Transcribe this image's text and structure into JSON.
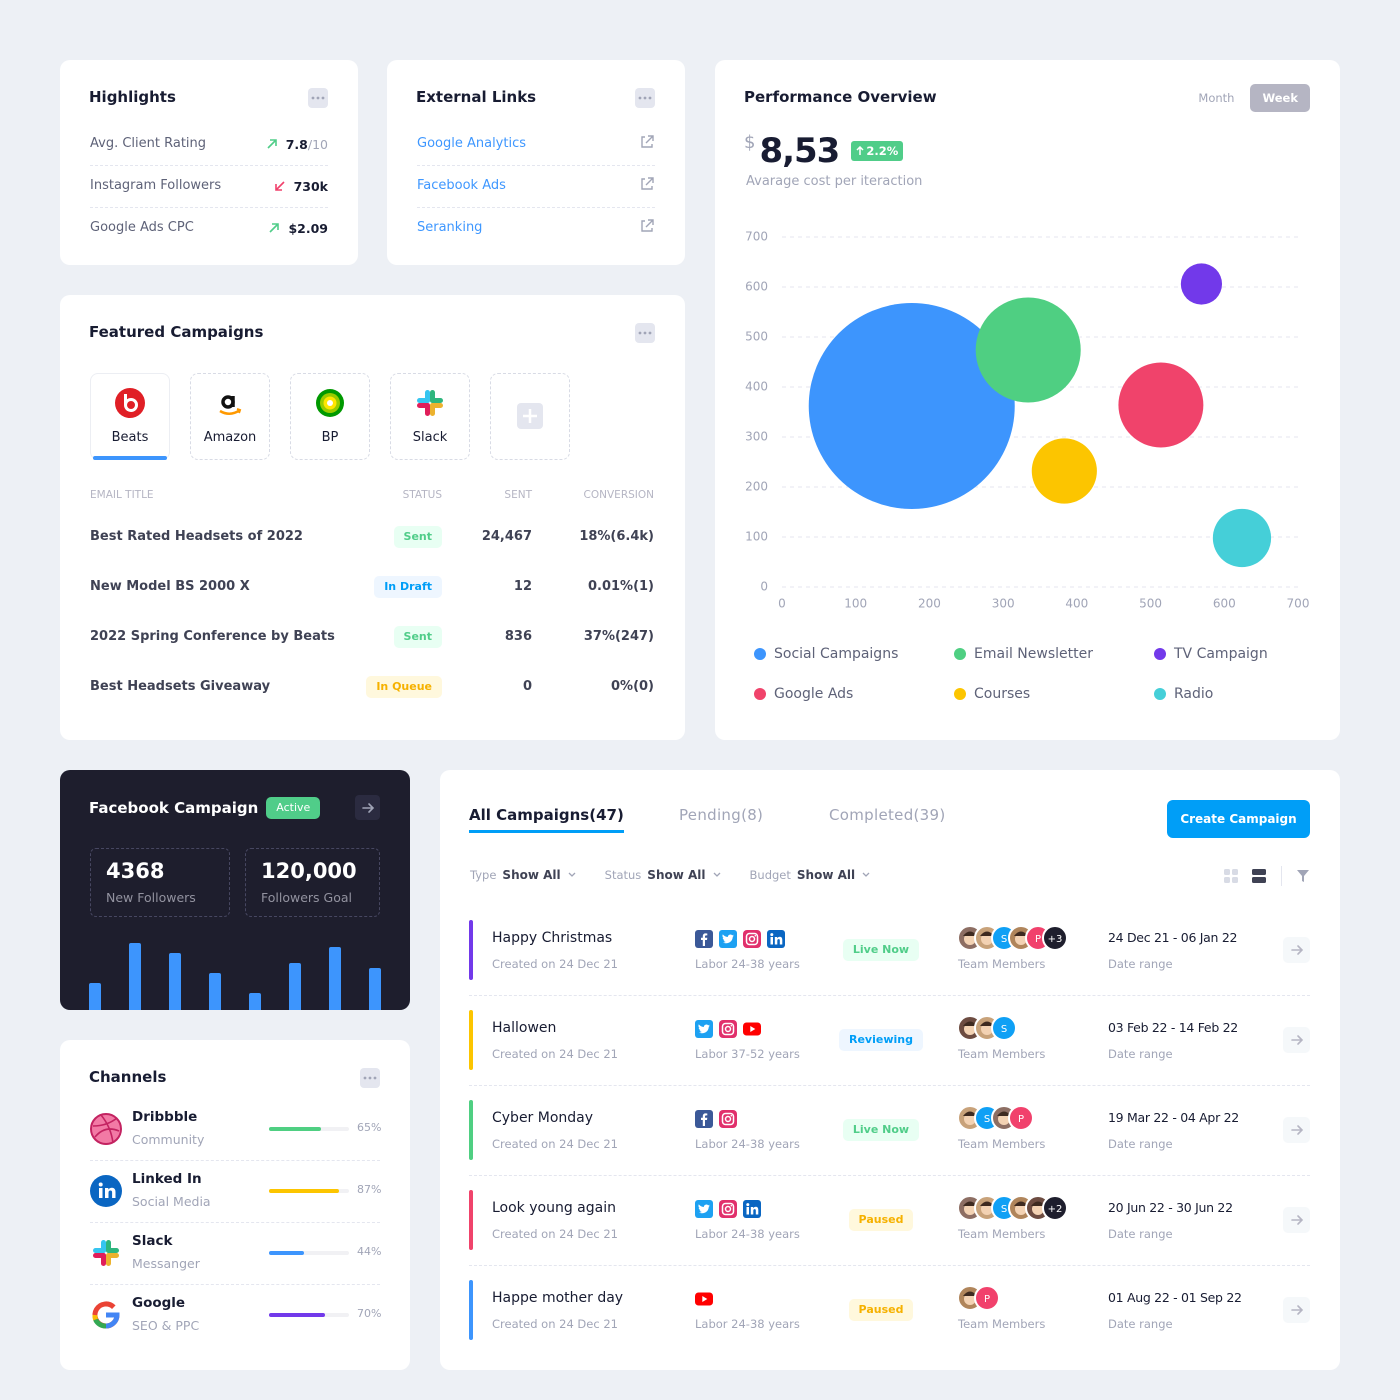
{
  "highlights": {
    "title": "Highlights",
    "items": [
      {
        "label": "Avg. Client Rating",
        "value": "7.8",
        "suffix": "/10",
        "trend": "up"
      },
      {
        "label": "Instagram Followers",
        "value": "730k",
        "trend": "down"
      },
      {
        "label": "Google Ads CPC",
        "value": "$2.09",
        "trend": "up"
      }
    ]
  },
  "external_links": {
    "title": "External Links",
    "links": [
      "Google Analytics",
      "Facebook Ads",
      "Seranking"
    ]
  },
  "performance": {
    "periods": [
      "Month",
      "Week"
    ],
    "active_period": 1,
    "currency": "$",
    "value": "8,53",
    "change": "2.2%",
    "caption": "Avarage cost per iteraction"
  },
  "chart_data": [
    {
      "type": "bubble",
      "title": "Performance Overview",
      "series": [
        {
          "name": "Social Campaigns",
          "color": "#3d95fd",
          "x": [
            176
          ],
          "values": [
            362
          ],
          "sizes": [
            100
          ]
        },
        {
          "name": "Email Newsletter",
          "color": "#4fcf82",
          "x": [
            334
          ],
          "values": [
            474
          ],
          "sizes": [
            26
          ]
        },
        {
          "name": "TV Campaign",
          "color": "#7239ea",
          "x": [
            569
          ],
          "values": [
            606
          ],
          "sizes": [
            4
          ]
        },
        {
          "name": "Google Ads",
          "color": "#f0436b",
          "x": [
            514
          ],
          "values": [
            364
          ],
          "sizes": [
            17
          ]
        },
        {
          "name": "Courses",
          "color": "#fcc500",
          "x": [
            383
          ],
          "values": [
            232
          ],
          "sizes": [
            10
          ]
        },
        {
          "name": "Radio",
          "color": "#45cfd8",
          "x": [
            624
          ],
          "values": [
            98
          ],
          "sizes": [
            8
          ]
        }
      ],
      "xlim": [
        0,
        700
      ],
      "ylim": [
        0,
        700
      ],
      "xticks": [
        0,
        100,
        200,
        300,
        400,
        500,
        600,
        700
      ],
      "yticks": [
        0,
        100,
        200,
        300,
        400,
        500,
        600,
        700
      ],
      "grid": true
    },
    {
      "type": "bar",
      "color": "#3d95fd",
      "values": [
        27,
        67,
        57,
        37,
        17,
        47,
        63,
        42
      ]
    }
  ],
  "featured": {
    "title": "Featured Campaigns",
    "brands": [
      {
        "name": "Beats",
        "logo": "beats"
      },
      {
        "name": "Amazon",
        "logo": "amazon"
      },
      {
        "name": "BP",
        "logo": "bp"
      },
      {
        "name": "Slack",
        "logo": "slack"
      }
    ],
    "active_brand": 0,
    "columns": [
      "EMAIL TITLE",
      "STATUS",
      "SENT",
      "CONVERSION"
    ],
    "rows": [
      {
        "title": "Best Rated Headsets of 2022",
        "status": "Sent",
        "tone": "green",
        "sent": "24,467",
        "conversion": "18%(6.4k)"
      },
      {
        "title": "New Model BS 2000 X",
        "status": "In Draft",
        "tone": "blue",
        "sent": "12",
        "conversion": "0.01%(1)"
      },
      {
        "title": "2022 Spring Conference by Beats",
        "status": "Sent",
        "tone": "green",
        "sent": "836",
        "conversion": "37%(247)"
      },
      {
        "title": "Best Headsets Giveaway",
        "status": "In Queue",
        "tone": "yellow",
        "sent": "0",
        "conversion": "0%(0)"
      }
    ]
  },
  "facebook": {
    "title": "Facebook Campaign",
    "badge": "Active",
    "stats": [
      {
        "value": "4368",
        "label": "New Followers"
      },
      {
        "value": "120,000",
        "label": "Followers Goal"
      }
    ]
  },
  "channels": {
    "title": "Channels",
    "items": [
      {
        "name": "Dribbble",
        "sub": "Community",
        "icon": "dribbble",
        "value": 65,
        "value_label": "65%",
        "color": "#4fcf82"
      },
      {
        "name": "Linked In",
        "sub": "Social Media",
        "icon": "linkedin",
        "value": 87,
        "value_label": "87%",
        "color": "#fcc500"
      },
      {
        "name": "Slack",
        "sub": "Messanger",
        "icon": "slack",
        "value": 44,
        "value_label": "44%",
        "color": "#3d95fd"
      },
      {
        "name": "Google",
        "sub": "SEO & PPC",
        "icon": "google",
        "value": 70,
        "value_label": "70%",
        "color": "#7239ea"
      }
    ]
  },
  "campaigns": {
    "tabs": [
      "All Campaigns(47)",
      "Pending(8)",
      "Completed(39)"
    ],
    "active_tab": 0,
    "button": "Create Campaign",
    "filters": [
      {
        "label": "Type",
        "value": "Show All"
      },
      {
        "label": "Status",
        "value": "Show All"
      },
      {
        "label": "Budget",
        "value": "Show All"
      }
    ],
    "rows": [
      {
        "name": "Happy Christmas",
        "created": "Created on 24 Dec 21",
        "color": "#7239ea",
        "channels": [
          "facebook",
          "twitter",
          "instagram",
          "linkedin"
        ],
        "audience": "Labor 24-38 years",
        "status": "Live Now",
        "tone": "green",
        "members": [
          {
            "color": "#8d6e63"
          },
          {
            "color": "#c8a27a"
          },
          {
            "label": "S",
            "color": "#0fa0f5"
          },
          {
            "color": "#b0855b"
          },
          {
            "label": "P",
            "color": "#f1416c"
          },
          {
            "label": "+3",
            "color": "#1e1e2d"
          }
        ],
        "members_label": "Team Members",
        "dates": "24 Dec 21 - 06 Jan 22",
        "dates_label": "Date range"
      },
      {
        "name": "Hallowen",
        "created": "Created on 24 Dec 21",
        "color": "#fcc500",
        "channels": [
          "twitter",
          "instagram",
          "youtube"
        ],
        "audience": "Labor 37-52 years",
        "status": "Reviewing",
        "tone": "blue",
        "members": [
          {
            "color": "#6d4c41"
          },
          {
            "color": "#c8a27a"
          },
          {
            "label": "S",
            "color": "#0fa0f5"
          }
        ],
        "members_label": "Team Members",
        "dates": "03 Feb 22 - 14 Feb 22",
        "dates_label": "Date range"
      },
      {
        "name": "Cyber Monday",
        "created": "Created on 24 Dec 21",
        "color": "#4fcf82",
        "channels": [
          "facebook",
          "instagram"
        ],
        "audience": "Labor 24-38 years",
        "status": "Live Now",
        "tone": "green",
        "members": [
          {
            "color": "#c8a27a"
          },
          {
            "label": "S",
            "color": "#0fa0f5"
          },
          {
            "color": "#8d6e63"
          },
          {
            "label": "P",
            "color": "#f1416c"
          }
        ],
        "members_label": "Team Members",
        "dates": "19 Mar 22 - 04 Apr 22",
        "dates_label": "Date range"
      },
      {
        "name": "Look young again",
        "created": "Created on 24 Dec 21",
        "color": "#f0436b",
        "channels": [
          "twitter",
          "instagram",
          "linkedin"
        ],
        "audience": "Labor 24-38 years",
        "status": "Paused",
        "tone": "yellow",
        "members": [
          {
            "color": "#8d6e63"
          },
          {
            "color": "#c8a27a"
          },
          {
            "label": "S",
            "color": "#0fa0f5"
          },
          {
            "color": "#b0855b"
          },
          {
            "color": "#6d4c41"
          },
          {
            "label": "+2",
            "color": "#1e1e2d"
          }
        ],
        "members_label": "Team Members",
        "dates": "20 Jun 22 - 30 Jun 22",
        "dates_label": "Date range"
      },
      {
        "name": "Happe mother day",
        "created": "Created on 24 Dec 21",
        "color": "#3d95fd",
        "channels": [
          "youtube"
        ],
        "audience": "Labor 24-38 years",
        "status": "Paused",
        "tone": "yellow",
        "members": [
          {
            "color": "#b0855b"
          },
          {
            "label": "P",
            "color": "#f1416c"
          }
        ],
        "members_label": "Team Members",
        "dates": "01 Aug 22 - 01 Sep 22",
        "dates_label": "Date range"
      }
    ]
  }
}
